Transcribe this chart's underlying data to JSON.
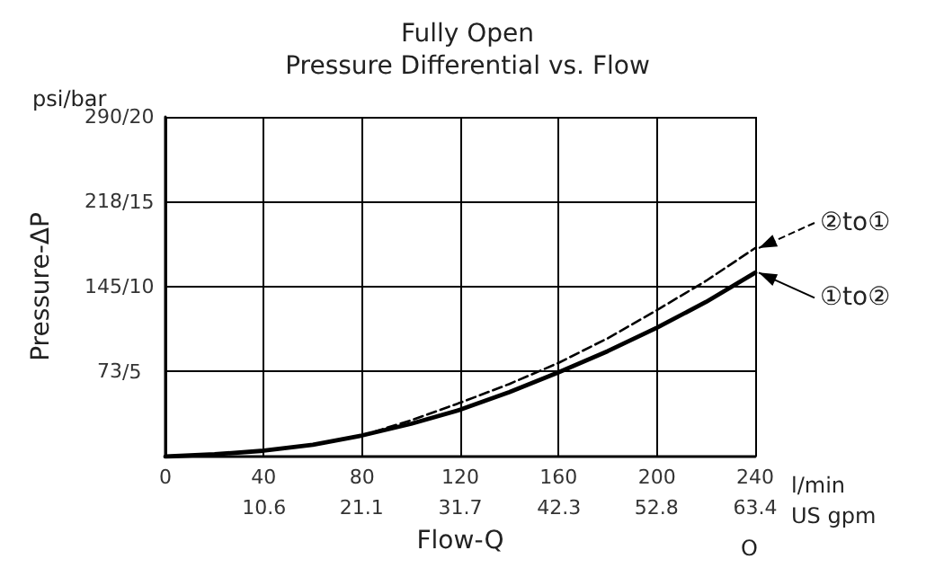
{
  "chart_data": {
    "type": "line",
    "title": "Fully Open",
    "subtitle": "Pressure Differential vs. Flow",
    "xlabel": "Flow-Q",
    "ylabel": "Pressure-ΔP",
    "x": [
      0,
      20,
      40,
      60,
      80,
      100,
      120,
      140,
      160,
      180,
      200,
      220,
      240
    ],
    "series": [
      {
        "name": "②to①",
        "color": "#000000",
        "line_style": "dashed",
        "values": [
          0,
          2,
          5,
          10,
          18,
          31,
          46,
          62,
          80,
          101,
          125,
          150,
          178
        ]
      },
      {
        "name": "①to②",
        "color": "#000000",
        "line_style": "solid",
        "values": [
          0,
          2,
          5,
          10,
          18,
          28,
          40,
          55,
          72,
          90,
          110,
          132,
          157
        ]
      }
    ],
    "xlim": [
      0,
      240
    ],
    "xticks": [
      0,
      40,
      80,
      120,
      160,
      200,
      240
    ],
    "x2lim": [
      0,
      63.4
    ],
    "x2ticks": [
      10.6,
      21.1,
      31.7,
      42.3,
      52.8,
      63.4
    ],
    "ylim": [
      0,
      290
    ],
    "yticks": [
      73,
      145,
      218,
      290
    ],
    "y2lim": [
      0,
      20
    ],
    "y2ticks": [
      {
        "value": 5,
        "label": "/5"
      },
      {
        "value": 10,
        "label": "/10"
      },
      {
        "value": 15,
        "label": "/15"
      },
      {
        "value": 20,
        "label": "/20"
      }
    ],
    "grid": true,
    "legend": "right",
    "marker": "none",
    "annotations": [
      "psi/bar",
      "l/min",
      "US gpm",
      "O"
    ]
  }
}
